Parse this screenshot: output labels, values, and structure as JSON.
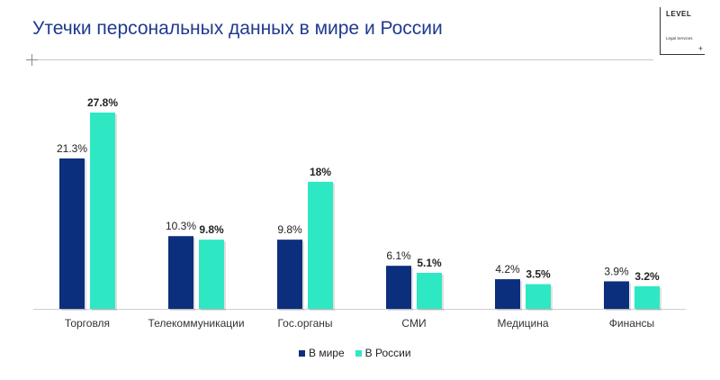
{
  "header": {
    "title": "Утечки персональных данных в мире и России"
  },
  "logo": {
    "word": "LEVEL",
    "sub": "Legal Services",
    "plus": "+"
  },
  "chart_data": {
    "type": "bar",
    "title": "",
    "xlabel": "",
    "ylabel": "",
    "ylim": [
      0,
      30
    ],
    "grid": false,
    "legend_position": "bottom",
    "categories": [
      "Торговля",
      "Телекоммуникации",
      "Гос.органы",
      "СМИ",
      "Медицина",
      "Финансы"
    ],
    "series": [
      {
        "name": "В мире",
        "color": "#0c2f7d",
        "values": [
          21.3,
          10.3,
          9.8,
          6.1,
          4.2,
          3.9
        ],
        "labels": [
          "21.3%",
          "10.3%",
          "9.8%",
          "6.1%",
          "4.2%",
          "3.9%"
        ]
      },
      {
        "name": "В России",
        "color": "#2ee8c4",
        "values": [
          27.8,
          9.8,
          18,
          5.1,
          3.5,
          3.2
        ],
        "labels": [
          "27.8%",
          "9.8%",
          "18%",
          "5.1%",
          "3.5%",
          "3.2%"
        ]
      }
    ]
  }
}
